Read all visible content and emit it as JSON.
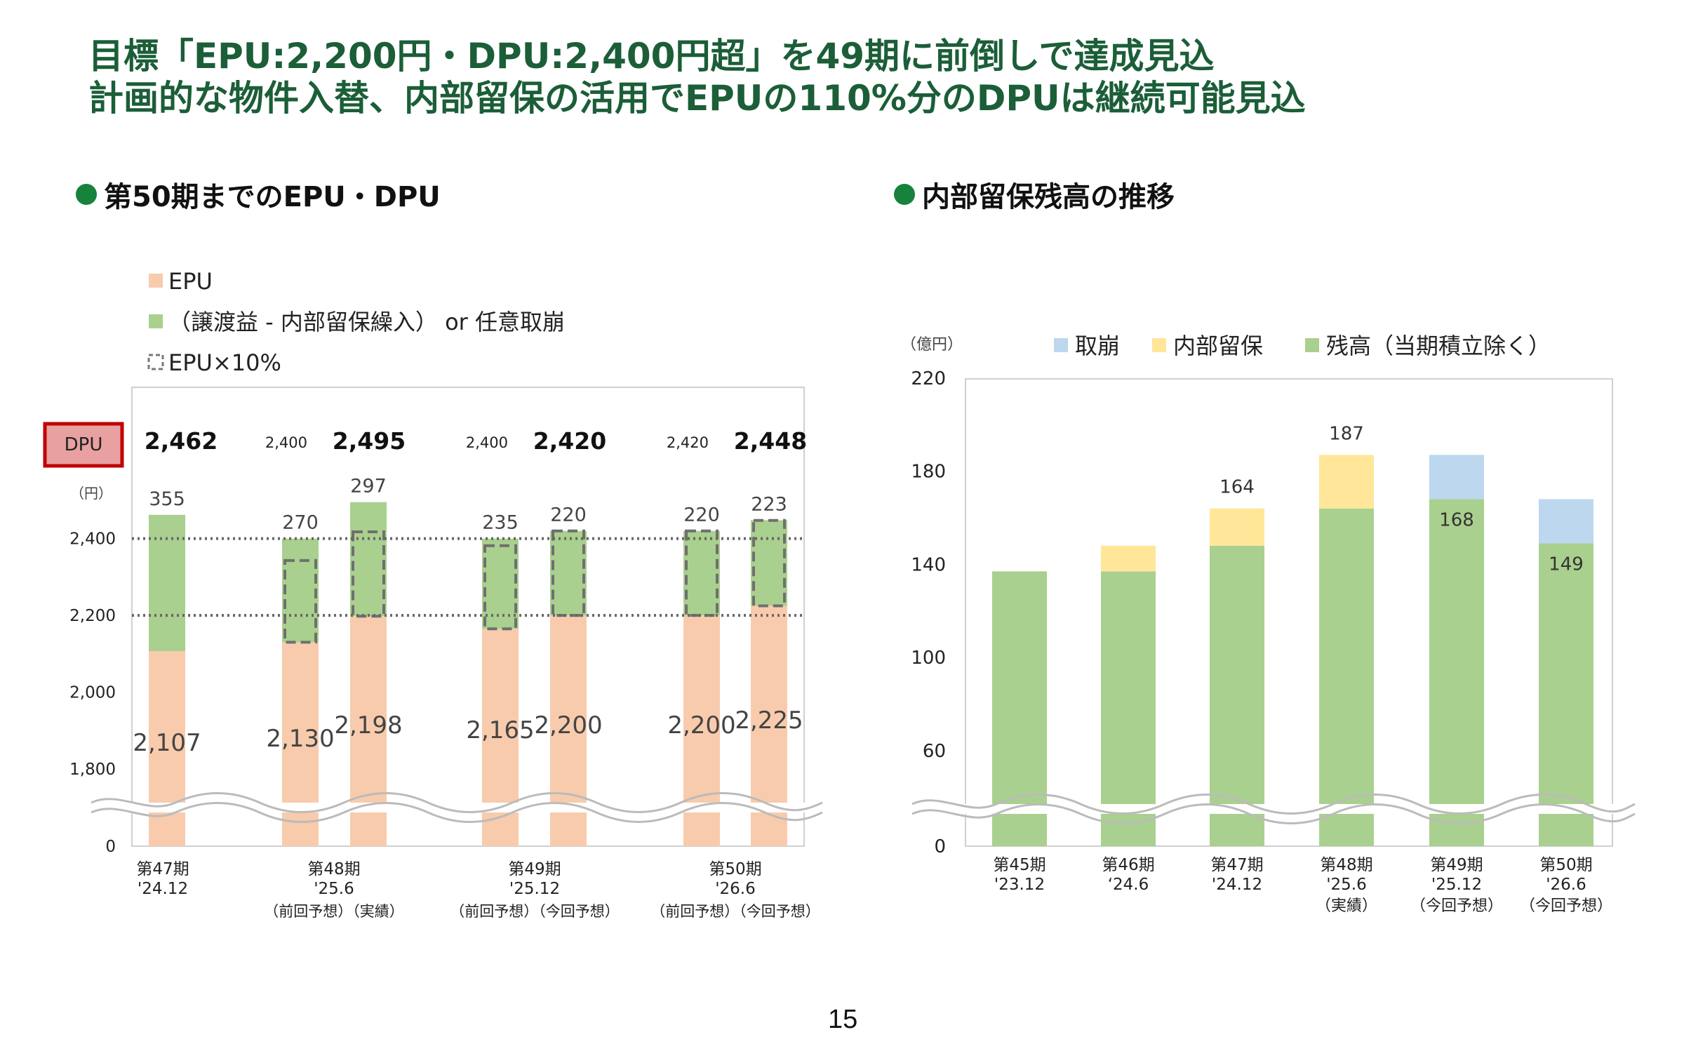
{
  "headline": {
    "line1": "目標「EPU:2,200円・DPU:2,400円超」を49期に前倒しで達成見込",
    "line2": "計画的な物件入替、内部留保の活用でEPUの110%分のDPUは継続可能見込"
  },
  "left_section_title": "第50期までのEPU・DPU",
  "right_section_title": "内部留保残高の推移",
  "page_number": "15",
  "colors": {
    "headline": "#1b5e38",
    "bullet": "#16823c",
    "epu": "#f8cbad",
    "green": "#a9d08e",
    "reserve_blue": "#bdd7ee",
    "reserve_yellow": "#ffe699",
    "dpu_box": "#e8a0a0",
    "dpu_border": "#c00000"
  },
  "chart_data": [
    {
      "type": "bar",
      "title": "",
      "legend": [
        "EPU",
        "（譲渡益 - 内部留保繰入） or 任意取崩",
        "EPU×10%"
      ],
      "dpu_label": "DPU",
      "unit_label": "（円）",
      "yticks": [
        "0",
        "1,800",
        "2,000",
        "2,200",
        "2,400"
      ],
      "axis_break": true,
      "reference_lines": [
        2200,
        2400
      ],
      "groups": [
        {
          "period": "第47期",
          "date": "'24.12",
          "note": "",
          "dpu_prev": "",
          "dpu": "2,462"
        },
        {
          "period": "第48期",
          "date": "'25.6",
          "note": "（前回予想）（実績）",
          "dpu_prev": "2,400",
          "dpu": "2,495"
        },
        {
          "period": "第49期",
          "date": "'25.12",
          "note": "（前回予想）（今回予想）",
          "dpu_prev": "2,400",
          "dpu": "2,420"
        },
        {
          "period": "第50期",
          "date": "'26.6",
          "note": "（前回予想）（今回予想）",
          "dpu_prev": "2,420",
          "dpu": "2,448"
        }
      ],
      "bars": [
        {
          "epu": 2107,
          "epu_label": "2,107",
          "extra": 355,
          "extra_label": "355",
          "dashed": false
        },
        {
          "epu": 2130,
          "epu_label": "2,130",
          "extra": 270,
          "extra_label": "270",
          "dashed": true
        },
        {
          "epu": 2198,
          "epu_label": "2,198",
          "extra": 297,
          "extra_label": "297",
          "dashed": true
        },
        {
          "epu": 2165,
          "epu_label": "2,165",
          "extra": 235,
          "extra_label": "235",
          "dashed": true
        },
        {
          "epu": 2200,
          "epu_label": "2,200",
          "extra": 220,
          "extra_label": "220",
          "dashed": true
        },
        {
          "epu": 2200,
          "epu_label": "2,200",
          "extra": 220,
          "extra_label": "220",
          "dashed": true
        },
        {
          "epu": 2225,
          "epu_label": "2,225",
          "extra": 223,
          "extra_label": "223",
          "dashed": true
        }
      ]
    },
    {
      "type": "bar",
      "title": "",
      "unit_label": "（億円）",
      "legend": [
        "取崩",
        "内部留保",
        "残高（当期積立除く）"
      ],
      "yticks": [
        "0",
        "60",
        "100",
        "140",
        "180",
        "220"
      ],
      "axis_break": true,
      "categories": [
        {
          "period": "第45期",
          "date": "'23.12",
          "note": ""
        },
        {
          "period": "第46期",
          "date": "‘24.6",
          "note": ""
        },
        {
          "period": "第47期",
          "date": "'24.12",
          "note": ""
        },
        {
          "period": "第48期",
          "date": "'25.6",
          "note": "（実績）"
        },
        {
          "period": "第49期",
          "date": "'25.12",
          "note": "（今回予想）"
        },
        {
          "period": "第50期",
          "date": "'26.6",
          "note": "（今回予想）"
        }
      ],
      "series": [
        {
          "name": "残高（当期積立除く）",
          "values": [
            137,
            137,
            148,
            164,
            168,
            149
          ]
        },
        {
          "name": "内部留保",
          "values": [
            0,
            11,
            16,
            23,
            0,
            0
          ]
        },
        {
          "name": "取崩",
          "values": [
            0,
            0,
            0,
            0,
            19,
            19
          ]
        }
      ],
      "bar_labels": [
        {
          "index": 2,
          "text": "164",
          "position": "top"
        },
        {
          "index": 3,
          "text": "187",
          "position": "top"
        },
        {
          "index": 4,
          "text": "168",
          "position": "inside"
        },
        {
          "index": 5,
          "text": "149",
          "position": "inside"
        }
      ]
    }
  ]
}
